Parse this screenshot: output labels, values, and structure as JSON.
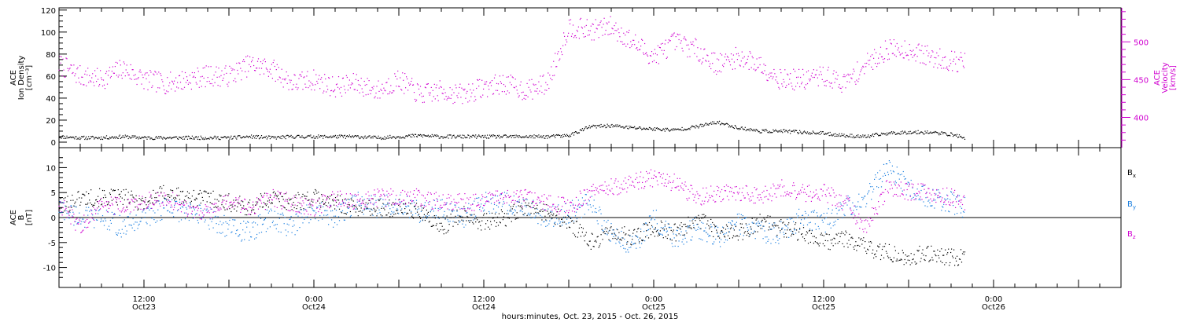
{
  "chart_data": [
    {
      "type": "scatter",
      "ylabel_lines": [
        "ACE",
        "Ion Density",
        "[cm⁻³]"
      ],
      "y2label_lines": [
        "ACE",
        "Velocity",
        "[km/s]"
      ],
      "ylim": [
        -5,
        122
      ],
      "y2lim": [
        360,
        545
      ],
      "yticks": [
        0,
        20,
        40,
        60,
        80,
        100,
        120
      ],
      "y2ticks": [
        400,
        450,
        500
      ],
      "series": [
        {
          "axis": "left",
          "color": "#000000",
          "values": [
            [
              0,
              5
            ],
            [
              3,
              4
            ],
            [
              6,
              4
            ],
            [
              9,
              5
            ],
            [
              12,
              4
            ],
            [
              15,
              4
            ],
            [
              18,
              4
            ],
            [
              21,
              4
            ],
            [
              24,
              4
            ],
            [
              27,
              5
            ],
            [
              30,
              4
            ],
            [
              33,
              5
            ],
            [
              36,
              5
            ],
            [
              39,
              5
            ],
            [
              42,
              5
            ],
            [
              45,
              4
            ],
            [
              48,
              5
            ],
            [
              51,
              6
            ],
            [
              54,
              5
            ],
            [
              57,
              5
            ],
            [
              60,
              5
            ],
            [
              63,
              5
            ],
            [
              66,
              5
            ],
            [
              69,
              5
            ],
            [
              72,
              6
            ],
            [
              75,
              14
            ],
            [
              78,
              15
            ],
            [
              81,
              13
            ],
            [
              84,
              12
            ],
            [
              87,
              11
            ],
            [
              90,
              14
            ],
            [
              93,
              18
            ],
            [
              96,
              13
            ],
            [
              99,
              10
            ],
            [
              102,
              10
            ],
            [
              105,
              9
            ],
            [
              108,
              8
            ],
            [
              111,
              6
            ],
            [
              114,
              5
            ],
            [
              117,
              8
            ],
            [
              120,
              9
            ],
            [
              123,
              9
            ],
            [
              126,
              7
            ],
            [
              128,
              4
            ]
          ]
        },
        {
          "axis": "right",
          "color": "#d000d0",
          "values": [
            [
              0,
              470
            ],
            [
              3,
              455
            ],
            [
              6,
              450
            ],
            [
              9,
              465
            ],
            [
              12,
              450
            ],
            [
              15,
              445
            ],
            [
              18,
              450
            ],
            [
              21,
              455
            ],
            [
              24,
              455
            ],
            [
              27,
              470
            ],
            [
              30,
              465
            ],
            [
              33,
              445
            ],
            [
              36,
              450
            ],
            [
              39,
              440
            ],
            [
              42,
              445
            ],
            [
              45,
              435
            ],
            [
              48,
              450
            ],
            [
              51,
              430
            ],
            [
              54,
              435
            ],
            [
              57,
              430
            ],
            [
              60,
              440
            ],
            [
              63,
              445
            ],
            [
              66,
              435
            ],
            [
              69,
              445
            ],
            [
              72,
              520
            ],
            [
              75,
              515
            ],
            [
              78,
              520
            ],
            [
              81,
              500
            ],
            [
              84,
              480
            ],
            [
              87,
              500
            ],
            [
              90,
              490
            ],
            [
              93,
              470
            ],
            [
              96,
              480
            ],
            [
              99,
              470
            ],
            [
              102,
              450
            ],
            [
              105,
              450
            ],
            [
              108,
              455
            ],
            [
              111,
              445
            ],
            [
              114,
              470
            ],
            [
              117,
              490
            ],
            [
              120,
              490
            ],
            [
              123,
              480
            ],
            [
              126,
              475
            ],
            [
              128,
              473
            ]
          ]
        }
      ]
    },
    {
      "type": "scatter",
      "ylabel_lines": [
        "ACE",
        "B",
        "[nT]"
      ],
      "ylim": [
        -14,
        14
      ],
      "yticks": [
        -10,
        -5,
        0,
        5,
        10
      ],
      "series": [
        {
          "name": "Bx",
          "label_main": "B",
          "label_sub": "x",
          "color": "#000000",
          "values": [
            [
              0,
              2
            ],
            [
              3,
              4
            ],
            [
              6,
              4
            ],
            [
              9,
              4
            ],
            [
              12,
              3
            ],
            [
              15,
              5
            ],
            [
              18,
              4
            ],
            [
              21,
              4
            ],
            [
              24,
              3
            ],
            [
              27,
              2
            ],
            [
              30,
              4
            ],
            [
              33,
              3
            ],
            [
              36,
              4
            ],
            [
              39,
              3
            ],
            [
              42,
              2
            ],
            [
              45,
              2
            ],
            [
              48,
              2
            ],
            [
              51,
              1
            ],
            [
              54,
              -2
            ],
            [
              57,
              1
            ],
            [
              60,
              -1
            ],
            [
              63,
              0
            ],
            [
              66,
              2
            ],
            [
              69,
              1
            ],
            [
              72,
              -1
            ],
            [
              75,
              -5
            ],
            [
              78,
              -3
            ],
            [
              81,
              -4
            ],
            [
              84,
              -2
            ],
            [
              87,
              -3
            ],
            [
              90,
              0
            ],
            [
              93,
              -3
            ],
            [
              96,
              -3
            ],
            [
              99,
              -1
            ],
            [
              102,
              -2
            ],
            [
              105,
              -3
            ],
            [
              108,
              -5
            ],
            [
              111,
              -4
            ],
            [
              114,
              -6
            ],
            [
              117,
              -7
            ],
            [
              120,
              -8
            ],
            [
              123,
              -7
            ],
            [
              126,
              -8
            ],
            [
              128,
              -8
            ]
          ]
        },
        {
          "name": "By",
          "label_main": "B",
          "label_sub": "y",
          "color": "#1c7fe0",
          "values": [
            [
              0,
              2
            ],
            [
              3,
              0
            ],
            [
              6,
              0
            ],
            [
              9,
              -2
            ],
            [
              12,
              0
            ],
            [
              15,
              2
            ],
            [
              18,
              1
            ],
            [
              21,
              0
            ],
            [
              24,
              -2
            ],
            [
              27,
              -3
            ],
            [
              30,
              0
            ],
            [
              33,
              -2
            ],
            [
              36,
              2
            ],
            [
              39,
              0
            ],
            [
              42,
              3
            ],
            [
              45,
              2
            ],
            [
              48,
              3
            ],
            [
              51,
              1
            ],
            [
              54,
              2
            ],
            [
              57,
              0
            ],
            [
              60,
              3
            ],
            [
              63,
              3
            ],
            [
              66,
              2
            ],
            [
              69,
              0
            ],
            [
              72,
              1
            ],
            [
              75,
              3
            ],
            [
              78,
              -3
            ],
            [
              81,
              -6
            ],
            [
              84,
              0
            ],
            [
              87,
              -4
            ],
            [
              90,
              -2
            ],
            [
              93,
              -4
            ],
            [
              96,
              -1
            ],
            [
              99,
              -3
            ],
            [
              102,
              -3
            ],
            [
              105,
              0
            ],
            [
              108,
              -1
            ],
            [
              111,
              2
            ],
            [
              114,
              4
            ],
            [
              117,
              10
            ],
            [
              120,
              6
            ],
            [
              123,
              4
            ],
            [
              126,
              3
            ],
            [
              128,
              2
            ]
          ]
        },
        {
          "name": "Bz",
          "label_main": "B",
          "label_sub": "z",
          "color": "#d000d0",
          "values": [
            [
              0,
              3
            ],
            [
              3,
              -2
            ],
            [
              6,
              3
            ],
            [
              9,
              2
            ],
            [
              12,
              3
            ],
            [
              15,
              4
            ],
            [
              18,
              2
            ],
            [
              21,
              1
            ],
            [
              24,
              3
            ],
            [
              27,
              2
            ],
            [
              30,
              4
            ],
            [
              33,
              3
            ],
            [
              36,
              2
            ],
            [
              39,
              4
            ],
            [
              42,
              3
            ],
            [
              45,
              4
            ],
            [
              48,
              4
            ],
            [
              51,
              4
            ],
            [
              54,
              3
            ],
            [
              57,
              3
            ],
            [
              60,
              3
            ],
            [
              63,
              4
            ],
            [
              66,
              4
            ],
            [
              69,
              3
            ],
            [
              72,
              2
            ],
            [
              75,
              5
            ],
            [
              78,
              6
            ],
            [
              81,
              7
            ],
            [
              84,
              8
            ],
            [
              87,
              7
            ],
            [
              90,
              4
            ],
            [
              93,
              5
            ],
            [
              96,
              5
            ],
            [
              99,
              4
            ],
            [
              102,
              6
            ],
            [
              105,
              5
            ],
            [
              108,
              5
            ],
            [
              111,
              3
            ],
            [
              114,
              -2
            ],
            [
              117,
              6
            ],
            [
              120,
              5
            ],
            [
              123,
              5
            ],
            [
              126,
              4
            ],
            [
              128,
              3
            ]
          ]
        }
      ]
    }
  ],
  "x_axis": {
    "start_hours": 0,
    "end_hours": 150,
    "ticks": [
      {
        "h": 12,
        "time": "12:00",
        "day": "Oct23"
      },
      {
        "h": 36,
        "time": "0:00",
        "day": "Oct24"
      },
      {
        "h": 60,
        "time": "12:00",
        "day": "Oct24"
      },
      {
        "h": 84,
        "time": "0:00",
        "day": "Oct25"
      },
      {
        "h": 108,
        "time": "12:00",
        "day": "Oct25"
      },
      {
        "h": 132,
        "time": "0:00",
        "day": "Oct26"
      }
    ],
    "xlabel": "hours:minutes, Oct. 23, 2015 - Oct. 26, 2015"
  }
}
